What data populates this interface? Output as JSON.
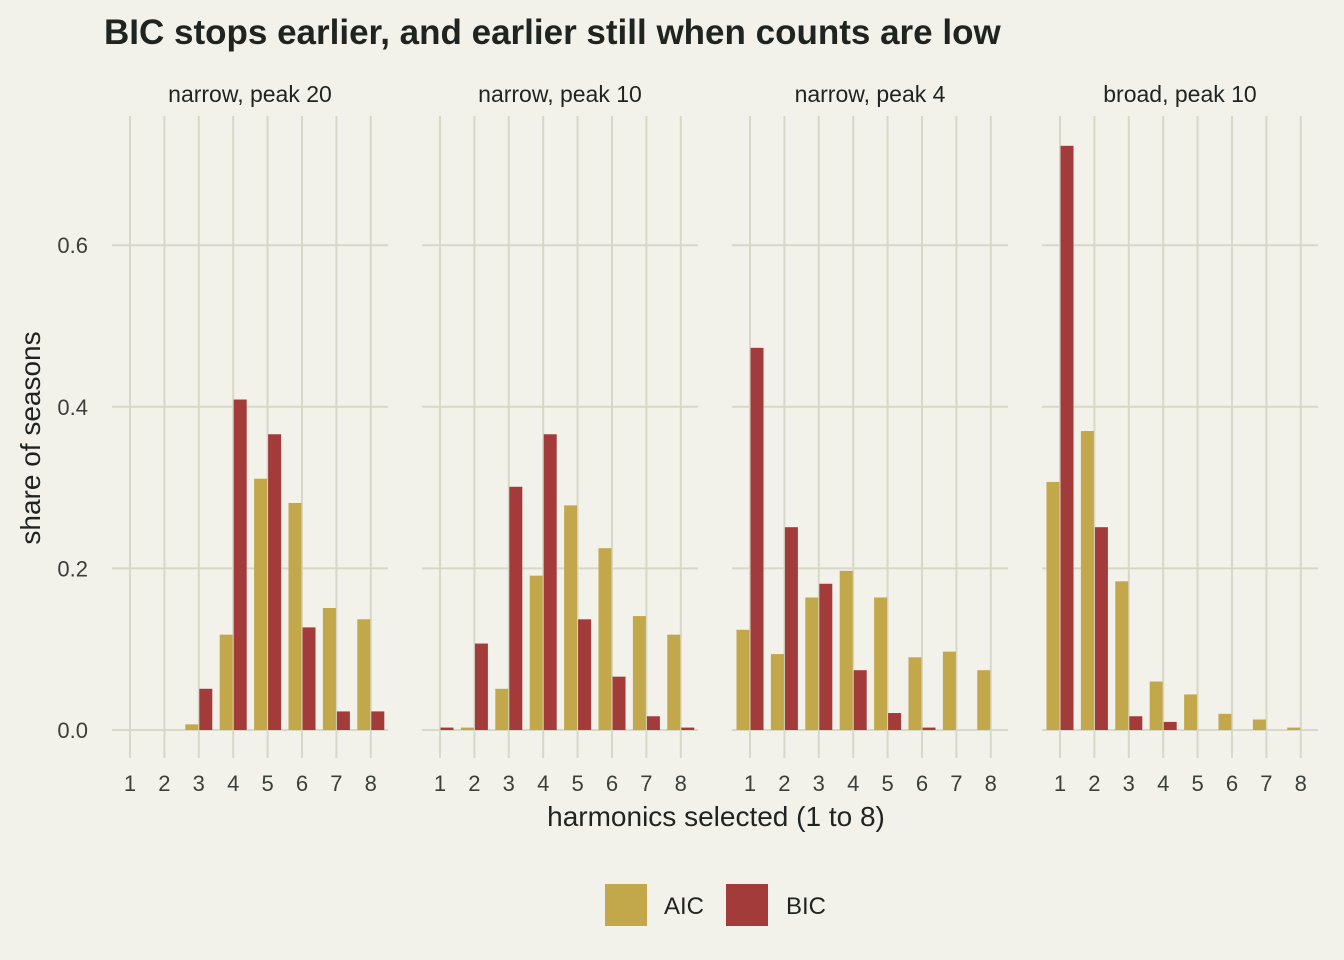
{
  "chart_data": {
    "type": "bar",
    "title": "BIC stops earlier, and earlier still when counts are low",
    "xlabel": "harmonics selected (1 to 8)",
    "ylabel": "share of seasons",
    "ylim": [
      0,
      0.74
    ],
    "y_ticks": [
      "0.0",
      "0.2",
      "0.4",
      "0.6"
    ],
    "y_tick_values": [
      0,
      0.2,
      0.4,
      0.6
    ],
    "categories": [
      "1",
      "2",
      "3",
      "4",
      "5",
      "6",
      "7",
      "8"
    ],
    "legend_position": "bottom",
    "grid": true,
    "series_colors": {
      "AIC": "#c2a84a",
      "BIC": "#a33b3b"
    },
    "panels": [
      {
        "label": "narrow, peak 20",
        "series": [
          {
            "name": "AIC",
            "values": [
              0,
              0,
              0.007,
              0.118,
              0.311,
              0.281,
              0.151,
              0.137
            ]
          },
          {
            "name": "BIC",
            "values": [
              0,
              0,
              0.051,
              0.409,
              0.366,
              0.127,
              0.023,
              0.023
            ]
          }
        ]
      },
      {
        "label": "narrow, peak 10",
        "series": [
          {
            "name": "AIC",
            "values": [
              0,
              0.003,
              0.051,
              0.191,
              0.278,
              0.225,
              0.141,
              0.118
            ]
          },
          {
            "name": "BIC",
            "values": [
              0.003,
              0.107,
              0.301,
              0.366,
              0.137,
              0.066,
              0.017,
              0.003
            ]
          }
        ]
      },
      {
        "label": "narrow, peak 4",
        "series": [
          {
            "name": "AIC",
            "values": [
              0.124,
              0.094,
              0.164,
              0.197,
              0.164,
              0.09,
              0.097,
              0.074
            ]
          },
          {
            "name": "BIC",
            "values": [
              0.473,
              0.251,
              0.181,
              0.074,
              0.021,
              0.003,
              0,
              0
            ]
          }
        ]
      },
      {
        "label": "broad, peak 10",
        "series": [
          {
            "name": "AIC",
            "values": [
              0.307,
              0.37,
              0.184,
              0.06,
              0.044,
              0.02,
              0.013,
              0.003
            ]
          },
          {
            "name": "BIC",
            "values": [
              0.723,
              0.251,
              0.017,
              0.01,
              0,
              0,
              0,
              0
            ]
          }
        ]
      }
    ]
  }
}
